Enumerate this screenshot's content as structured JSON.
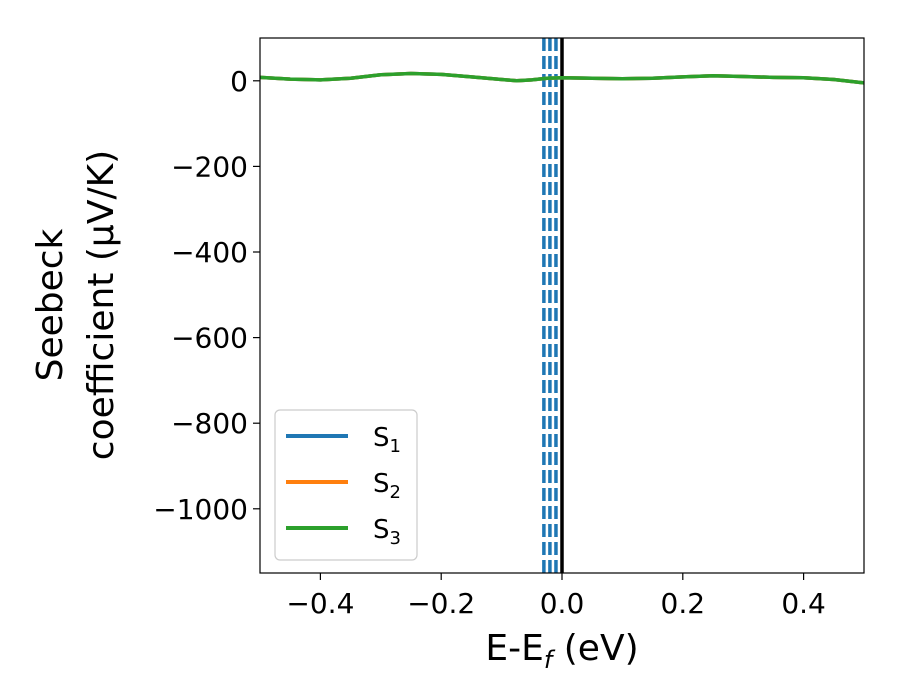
{
  "chart_data": {
    "type": "line",
    "xlabel": {
      "main": "E-E",
      "sub": "f",
      "tail": " (eV)"
    },
    "ylabel": {
      "line1": "Seebeck",
      "line2": "coefficient  (μV/K)"
    },
    "xlim": [
      -0.5,
      0.5
    ],
    "ylim": [
      -1150,
      100
    ],
    "xticks": [
      -0.4,
      -0.2,
      0.0,
      0.2,
      0.4
    ],
    "xtick_labels": [
      "−0.4",
      "−0.2",
      "0.0",
      "0.2",
      "0.4"
    ],
    "yticks": [
      0,
      -200,
      -400,
      -600,
      -800,
      -1000
    ],
    "ytick_labels": [
      "0",
      "−200",
      "−400",
      "−600",
      "−800",
      "−1000"
    ],
    "grid": false,
    "legend_position": "lower-left",
    "vertical_lines": [
      {
        "x": -0.03,
        "color": "#1f77b4",
        "style": "dashed"
      },
      {
        "x": -0.02,
        "color": "#1f77b4",
        "style": "dashed"
      },
      {
        "x": -0.01,
        "color": "#1f77b4",
        "style": "dashed"
      },
      {
        "x": 0.0,
        "color": "#000000",
        "style": "solid"
      }
    ],
    "series": [
      {
        "name": "S",
        "sub": "1",
        "color": "#1f77b4",
        "x": [
          -0.5,
          -0.45,
          -0.4,
          -0.35,
          -0.3,
          -0.25,
          -0.2,
          -0.15,
          -0.1,
          -0.075,
          -0.05,
          -0.025,
          0.0,
          0.05,
          0.1,
          0.15,
          0.2,
          0.25,
          0.3,
          0.35,
          0.4,
          0.45,
          0.5
        ],
        "y": [
          8,
          4,
          2,
          6,
          14,
          17,
          15,
          9,
          3,
          0,
          2,
          6,
          7,
          6,
          5,
          6,
          9,
          12,
          10,
          8,
          7,
          3,
          -5
        ]
      },
      {
        "name": "S",
        "sub": "2",
        "color": "#ff7f0e",
        "x": [
          -0.5,
          -0.45,
          -0.4,
          -0.35,
          -0.3,
          -0.25,
          -0.2,
          -0.15,
          -0.1,
          -0.075,
          -0.05,
          -0.025,
          0.0,
          0.05,
          0.1,
          0.15,
          0.2,
          0.25,
          0.3,
          0.35,
          0.4,
          0.45,
          0.5
        ],
        "y": [
          8,
          4,
          2,
          6,
          14,
          17,
          15,
          9,
          3,
          0,
          2,
          6,
          7,
          6,
          5,
          6,
          9,
          12,
          10,
          8,
          7,
          3,
          -5
        ]
      },
      {
        "name": "S",
        "sub": "3",
        "color": "#2ca02c",
        "x": [
          -0.5,
          -0.45,
          -0.4,
          -0.35,
          -0.3,
          -0.25,
          -0.2,
          -0.15,
          -0.1,
          -0.075,
          -0.05,
          -0.025,
          0.0,
          0.05,
          0.1,
          0.15,
          0.2,
          0.25,
          0.3,
          0.35,
          0.4,
          0.45,
          0.5
        ],
        "y": [
          8,
          4,
          2,
          6,
          14,
          17,
          15,
          9,
          3,
          0,
          2,
          6,
          7,
          6,
          5,
          6,
          9,
          12,
          10,
          8,
          7,
          3,
          -5
        ]
      }
    ]
  }
}
